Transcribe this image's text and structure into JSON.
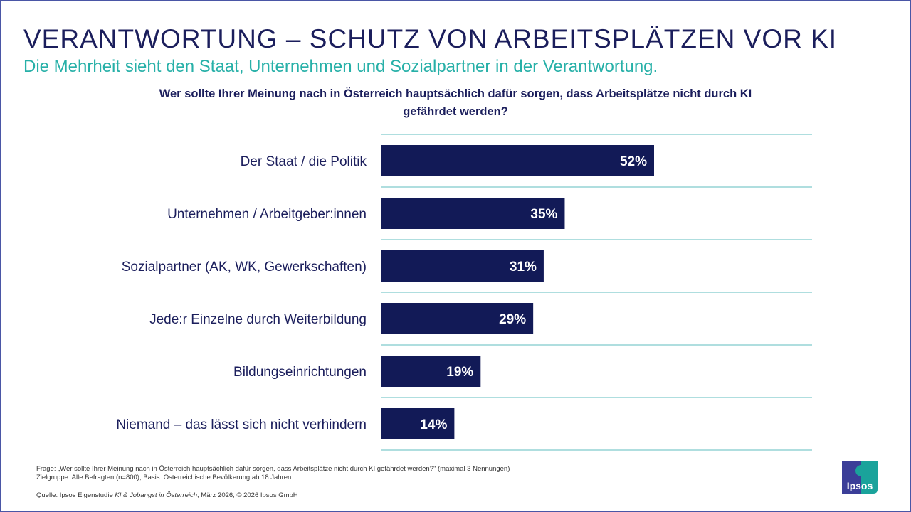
{
  "header": {
    "title": "VERANTWORTUNG – SCHUTZ VON ARBEITSPLÄTZEN VOR KI",
    "subtitle": "Die Mehrheit sieht den Staat, Unternehmen und Sozialpartner in der Verantwortung."
  },
  "chart_data": {
    "type": "bar",
    "orientation": "horizontal",
    "title": "Wer sollte Ihrer Meinung nach in Österreich hauptsächlich dafür sorgen, dass Arbeitsplätze nicht durch KI gefährdet werden?",
    "categories": [
      "Der Staat / die Politik",
      "Unternehmen / Arbeitgeber:innen",
      "Sozialpartner (AK, WK, Gewerkschaften)",
      "Jede:r Einzelne durch Weiterbildung",
      "Bildungseinrichtungen",
      "Niemand – das lässt sich nicht verhindern"
    ],
    "values": [
      52,
      35,
      31,
      29,
      19,
      14
    ],
    "labels": [
      "52%",
      "35%",
      "31%",
      "29%",
      "19%",
      "14%"
    ],
    "unit": "%",
    "xlim": [
      0,
      82
    ],
    "bar_color": "#121a57",
    "grid_color": "#7fc9cc"
  },
  "footer": {
    "frage": "Frage: „Wer sollte Ihrer Meinung nach in Österreich hauptsächlich dafür sorgen, dass Arbeitsplätze nicht durch KI gefährdet werden?\" (maximal 3 Nennungen)",
    "zielgruppe": "Zielgruppe: Alle Befragten (n=800); Basis: Österreichische Bevölkerung ab 18 Jahren",
    "quelle_prefix": "Quelle: Ipsos Eigenstudie ",
    "quelle_study": "KI & Jobangst in Österreich",
    "quelle_suffix": ", März 2026; © 2026 Ipsos GmbH"
  },
  "logo": {
    "text": "Ipsos",
    "colors": [
      "#3b3e98",
      "#1aa39b"
    ]
  }
}
